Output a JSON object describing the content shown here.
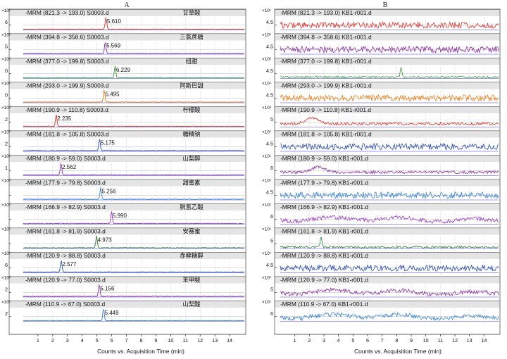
{
  "panels": [
    {
      "label": "A",
      "xlabel": "Counts vs. Acquisition Time (min)"
    },
    {
      "label": "B",
      "xlabel": "Counts vs. Acquisition Time (min)"
    }
  ],
  "colors": {
    "red": "#e0302c",
    "purple": "#8b2fa3",
    "green": "#3d9a3a",
    "orange": "#e8801c",
    "blue": "#2c4fb0",
    "lightblue": "#3b86d6",
    "violet": "#9a3bc6",
    "darkgreen": "#2f7d2f",
    "frame": "#555555",
    "grid": "#3b3be6",
    "band": "#e4e4e4"
  },
  "chart_data": [
    {
      "type": "line",
      "panel": "A",
      "xlim": [
        0,
        15
      ],
      "xticks": [
        "1",
        "2",
        "3",
        "4",
        "5",
        "6",
        "7",
        "8",
        "9",
        "10",
        "11",
        "12",
        "13",
        "14"
      ],
      "traces": [
        {
          "header": "-MRM (821.3 -> 193.0) S0003.d",
          "compound": "甘草酸",
          "mult": "×10¹",
          "ytick": "6",
          "color": "red",
          "peak_rt": 5.61,
          "peak_label": "5.610",
          "noise": "flat"
        },
        {
          "header": "-MRM (394.8 -> 358.6) S0003.d",
          "compound": "三氯蔗糖",
          "mult": "×10¹",
          "ytick": "5",
          "color": "purple",
          "peak_rt": 5.569,
          "peak_label": "5.569",
          "noise": "flat"
        },
        {
          "header": "-MRM (377.0 -> 199.8) S0003.d",
          "compound": "纽甜",
          "mult": "×10²",
          "ytick": "0",
          "color": "green",
          "peak_rt": 6.229,
          "peak_label": "6.229",
          "noise": "flat"
        },
        {
          "header": "-MRM (293.0 -> 199.9) S0003.d",
          "compound": "阿斯巴甜",
          "mult": "×10¹",
          "ytick": "0",
          "color": "orange",
          "peak_rt": 5.495,
          "peak_label": "5.495",
          "noise": "flat"
        },
        {
          "header": "-MRM (190.9 -> 110.8) S0003.d",
          "compound": "柠檬酸",
          "mult": "×10³",
          "ytick": "2",
          "color": "red",
          "peak_rt": 2.235,
          "peak_label": "2.235",
          "noise": "flat"
        },
        {
          "header": "-MRM (181.8 -> 105.8) S0003.d",
          "compound": "糖精钠",
          "mult": "×10¹",
          "ytick": "2",
          "color": "blue",
          "peak_rt": 5.175,
          "peak_label": "5.175",
          "noise": "flat"
        },
        {
          "header": "-MRM (180.9 -> 59.0) S0003.d",
          "compound": "山梨醇",
          "mult": "×10¹",
          "ytick": "1",
          "color": "purple",
          "peak_rt": 2.562,
          "peak_label": "2.562",
          "noise": "flat"
        },
        {
          "header": "-MRM (177.9 -> 79.8) S0003.d",
          "compound": "甜蜜素",
          "mult": "×10³",
          "ytick": "",
          "color": "lightblue",
          "peak_rt": 5.256,
          "peak_label": "5.256",
          "noise": "flat"
        },
        {
          "header": "-MRM (166.9 -> 82.9) S0003.d",
          "compound": "脱氢乙酸",
          "mult": "×10³",
          "ytick": "",
          "color": "violet",
          "peak_rt": 5.99,
          "peak_label": "5.990",
          "noise": "flat"
        },
        {
          "header": "-MRM (161.8 -> 81.9) S0003.d",
          "compound": "安赛蜜",
          "mult": "×10¹",
          "ytick": "",
          "color": "darkgreen",
          "peak_rt": 4.973,
          "peak_label": "4.973",
          "noise": "flat"
        },
        {
          "header": "-MRM (120.9 -> 88.8) S0003.d",
          "compound": "赤藓糖醇",
          "mult": "×10¹",
          "ytick": "6",
          "color": "blue",
          "peak_rt": 2.577,
          "peak_label": "2.577",
          "noise": "flat"
        },
        {
          "header": "-MRM (120.9 -> 77.0) S0003.d",
          "compound": "苯甲酸",
          "mult": "×10³",
          "ytick": "2",
          "color": "purple",
          "peak_rt": 5.156,
          "peak_label": "5.156",
          "noise": "flat"
        },
        {
          "header": "-MRM (110.9 -> 67.0) S0003.d",
          "compound": "山梨酸",
          "mult": "×10¹",
          "ytick": "2",
          "color": "lightblue",
          "peak_rt": 5.449,
          "peak_label": "5.449",
          "noise": "flat"
        }
      ]
    },
    {
      "type": "line",
      "panel": "B",
      "xlim": [
        0,
        15
      ],
      "xticks": [
        "1",
        "2",
        "3",
        "4",
        "5",
        "6",
        "7",
        "8",
        "9",
        "10",
        "11",
        "12",
        "13",
        "14"
      ],
      "traces": [
        {
          "header": "-MRM (821.3 -> 193.0) KB1-r001.d",
          "mult": "×10¹",
          "ytick": "4.5",
          "color": "red",
          "noise": "noisy"
        },
        {
          "header": "-MRM (394.8 -> 358.6) KB1-r001.d",
          "mult": "×10¹",
          "ytick": "4.5",
          "color": "purple",
          "noise": "noisy"
        },
        {
          "header": "-MRM (377.0 -> 199.8) KB1-r001.d",
          "mult": "×10²",
          "ytick": "4.5",
          "color": "green",
          "noise": "spike",
          "spike_rt": 8.3
        },
        {
          "header": "-MRM (293.0 -> 199.9) KB1-r001.d",
          "mult": "×10¹",
          "ytick": "4.5",
          "color": "orange",
          "noise": "noisy"
        },
        {
          "header": "-MRM (190.9 -> 110.8) KB1-r001.d",
          "mult": "×10³",
          "ytick": "5",
          "color": "red",
          "noise": "hump",
          "hump_rt": 2.2
        },
        {
          "header": "-MRM (181.8 -> 105.8) KB1-r001.d",
          "mult": "×10¹",
          "ytick": "4.5",
          "color": "blue",
          "noise": "noisy"
        },
        {
          "header": "-MRM (180.9 -> 59.0) KB1-r001.d",
          "mult": "×10¹",
          "ytick": "6",
          "color": "purple",
          "noise": "hump",
          "hump_rt": 2.6
        },
        {
          "header": "-MRM (177.9 -> 79.8) KB1-r001.d",
          "mult": "×10¹",
          "ytick": "4.5",
          "color": "lightblue",
          "noise": "noisy"
        },
        {
          "header": "-MRM (166.9 -> 82.9) KB1-r001.d",
          "mult": "×10¹",
          "ytick": "6",
          "color": "violet",
          "noise": "wave"
        },
        {
          "header": "-MRM (161.8 -> 81.9) KB1-r001.d",
          "mult": "×10¹",
          "ytick": "5",
          "color": "darkgreen",
          "noise": "spike",
          "spike_rt": 2.8
        },
        {
          "header": "-MRM (120.9 -> 88.8) KB1-r001.d",
          "mult": "×10¹",
          "ytick": "4.5",
          "color": "blue",
          "noise": "noisy"
        },
        {
          "header": "-MRM (120.9 -> 77.0) KB1-r001.d",
          "mult": "×10¹",
          "ytick": "5",
          "color": "purple",
          "noise": "wave"
        },
        {
          "header": "-MRM (110.9 -> 67.0) KB1-r001.d",
          "mult": "×10¹",
          "ytick": "6",
          "color": "lightblue",
          "noise": "wave"
        }
      ]
    }
  ]
}
